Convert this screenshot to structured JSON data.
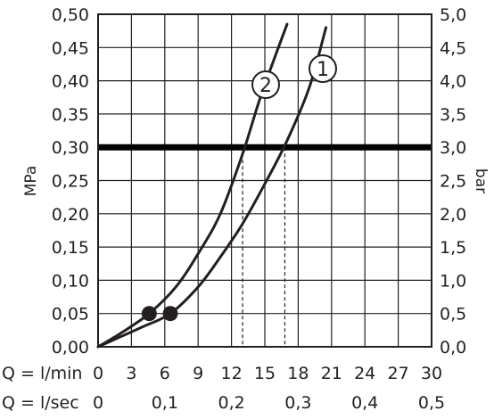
{
  "chart_data": {
    "type": "line",
    "y_left": {
      "label": "MPa",
      "range": [
        0,
        0.5
      ],
      "ticks": [
        "0,00",
        "0,05",
        "0,10",
        "0,15",
        "0,20",
        "0,25",
        "0,30",
        "0,35",
        "0,40",
        "0,45",
        "0,50"
      ]
    },
    "y_right": {
      "label": "bar",
      "range": [
        0,
        5
      ],
      "ticks": [
        "0,0",
        "0,5",
        "1,0",
        "1,5",
        "2,0",
        "2,5",
        "3,0",
        "3,5",
        "4,0",
        "4,5",
        "5,0"
      ]
    },
    "x_lpm": {
      "label": "Q = l/min",
      "range": [
        0,
        30
      ],
      "ticks": [
        "0",
        "3",
        "6",
        "9",
        "12",
        "15",
        "18",
        "21",
        "24",
        "27",
        "30"
      ]
    },
    "x_lps": {
      "label": "Q = l/sec",
      "range": [
        0,
        0.5
      ],
      "ticks": [
        "0",
        "0,1",
        "0,2",
        "0,3",
        "0,4",
        "0,5"
      ]
    },
    "grid": true,
    "reference_line": {
      "y": 0.3
    },
    "series": [
      {
        "name": "1",
        "x": [
          0,
          2,
          4,
          6.5,
          9,
          11,
          13,
          15,
          17,
          19,
          20.5
        ],
        "y": [
          0,
          0.015,
          0.03,
          0.05,
          0.09,
          0.135,
          0.185,
          0.245,
          0.31,
          0.39,
          0.48
        ],
        "marker": {
          "x": 6.5,
          "y": 0.05
        }
      },
      {
        "name": "2",
        "x": [
          0,
          2,
          4.6,
          7,
          9,
          11,
          13,
          14.5,
          16,
          17
        ],
        "y": [
          0,
          0.02,
          0.05,
          0.09,
          0.14,
          0.2,
          0.29,
          0.37,
          0.44,
          0.485
        ],
        "marker": {
          "x": 4.6,
          "y": 0.05
        }
      }
    ],
    "drop_lines": [
      {
        "x": 13.0,
        "y": 0.3
      },
      {
        "x": 16.8,
        "y": 0.3
      }
    ]
  }
}
